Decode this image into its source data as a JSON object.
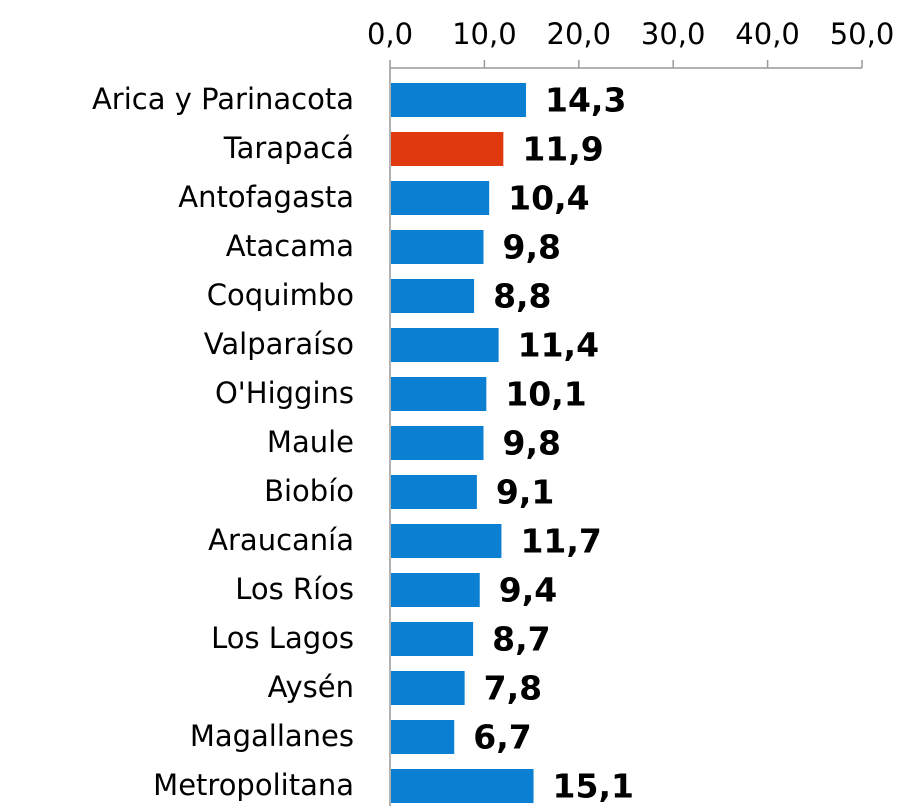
{
  "chart_data": {
    "type": "hbar",
    "categories": [
      "Arica y Parinacota",
      "Tarapacá",
      "Antofagasta",
      "Atacama",
      "Coquimbo",
      "Valparaíso",
      "O'Higgins",
      "Maule",
      "Biobío",
      "Araucanía",
      "Los Ríos",
      "Los Lagos",
      "Aysén",
      "Magallanes",
      "Metropolitana"
    ],
    "values": [
      14.3,
      11.9,
      10.4,
      9.8,
      8.8,
      11.4,
      10.1,
      9.8,
      9.1,
      11.7,
      9.4,
      8.7,
      7.8,
      6.7,
      15.1
    ],
    "value_labels": [
      "14,3",
      "11,9",
      "10,4",
      "9,8",
      "8,8",
      "11,4",
      "10,1",
      "9,8",
      "9,1",
      "11,7",
      "9,4",
      "8,7",
      "7,8",
      "6,7",
      "15,1"
    ],
    "colors": [
      "#0b7fd1",
      "#e0390f",
      "#0b7fd1",
      "#0b7fd1",
      "#0b7fd1",
      "#0b7fd1",
      "#0b7fd1",
      "#0b7fd1",
      "#0b7fd1",
      "#0b7fd1",
      "#0b7fd1",
      "#0b7fd1",
      "#0b7fd1",
      "#0b7fd1",
      "#0b7fd1"
    ],
    "xlim": [
      0,
      50
    ],
    "xticks": [
      {
        "value": 0,
        "label": "0,0"
      },
      {
        "value": 10,
        "label": "10,0"
      },
      {
        "value": 20,
        "label": "20,0"
      },
      {
        "value": 30,
        "label": "30,0"
      },
      {
        "value": 40,
        "label": "40,0"
      },
      {
        "value": 50,
        "label": "50,0"
      }
    ]
  }
}
